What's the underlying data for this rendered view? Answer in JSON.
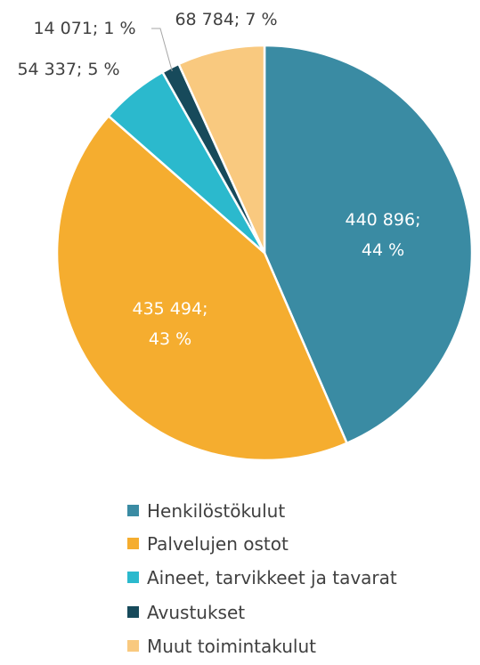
{
  "chart_data": {
    "type": "pie",
    "categories": [
      "Henkilöstökulut",
      "Palvelujen ostot",
      "Aineet, tarvikkeet ja tavarat",
      "Avustukset",
      "Muut toimintakulut"
    ],
    "values": [
      440896,
      435494,
      54337,
      14071,
      68784
    ],
    "value_labels": [
      "440 896; 44 %",
      "435 494; 43 %",
      "54 337; 5 %",
      "14 071; 1 %",
      "68 784; 7 %"
    ],
    "colors": [
      "#3a8ba3",
      "#f5ad2f",
      "#2bb9cd",
      "#174a5b",
      "#f9c97f"
    ],
    "legend": "bottom"
  }
}
